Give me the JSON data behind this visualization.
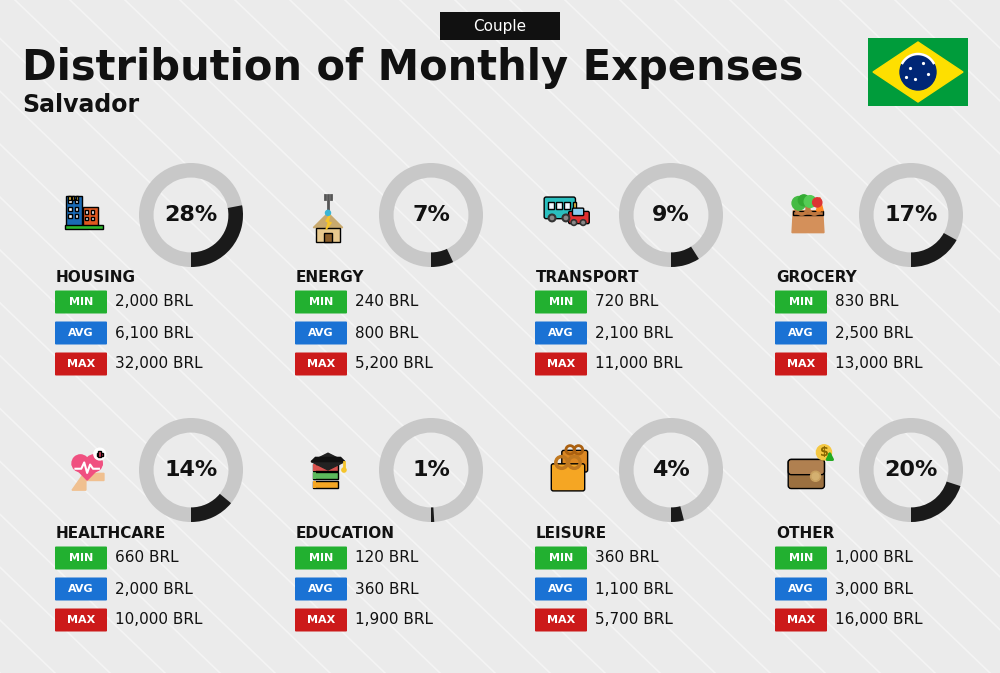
{
  "title": "Distribution of Monthly Expenses",
  "subtitle": "Salvador",
  "badge": "Couple",
  "bg_color": "#ebebeb",
  "categories": [
    {
      "name": "HOUSING",
      "pct": 28,
      "min": "2,000 BRL",
      "avg": "6,100 BRL",
      "max": "32,000 BRL",
      "row": 0,
      "col": 0
    },
    {
      "name": "ENERGY",
      "pct": 7,
      "min": "240 BRL",
      "avg": "800 BRL",
      "max": "5,200 BRL",
      "row": 0,
      "col": 1
    },
    {
      "name": "TRANSPORT",
      "pct": 9,
      "min": "720 BRL",
      "avg": "2,100 BRL",
      "max": "11,000 BRL",
      "row": 0,
      "col": 2
    },
    {
      "name": "GROCERY",
      "pct": 17,
      "min": "830 BRL",
      "avg": "2,500 BRL",
      "max": "13,000 BRL",
      "row": 0,
      "col": 3
    },
    {
      "name": "HEALTHCARE",
      "pct": 14,
      "min": "660 BRL",
      "avg": "2,000 BRL",
      "max": "10,000 BRL",
      "row": 1,
      "col": 0
    },
    {
      "name": "EDUCATION",
      "pct": 1,
      "min": "120 BRL",
      "avg": "360 BRL",
      "max": "1,900 BRL",
      "row": 1,
      "col": 1
    },
    {
      "name": "LEISURE",
      "pct": 4,
      "min": "360 BRL",
      "avg": "1,100 BRL",
      "max": "5,700 BRL",
      "row": 1,
      "col": 2
    },
    {
      "name": "OTHER",
      "pct": 20,
      "min": "1,000 BRL",
      "avg": "3,000 BRL",
      "max": "16,000 BRL",
      "row": 1,
      "col": 3
    }
  ],
  "min_color": "#22b030",
  "avg_color": "#1a72d4",
  "max_color": "#cc1a1a",
  "text_color": "#111111",
  "donut_bg": "#c8c8c8",
  "donut_fg": "#1a1a1a",
  "stripe_color": "#ffffff"
}
